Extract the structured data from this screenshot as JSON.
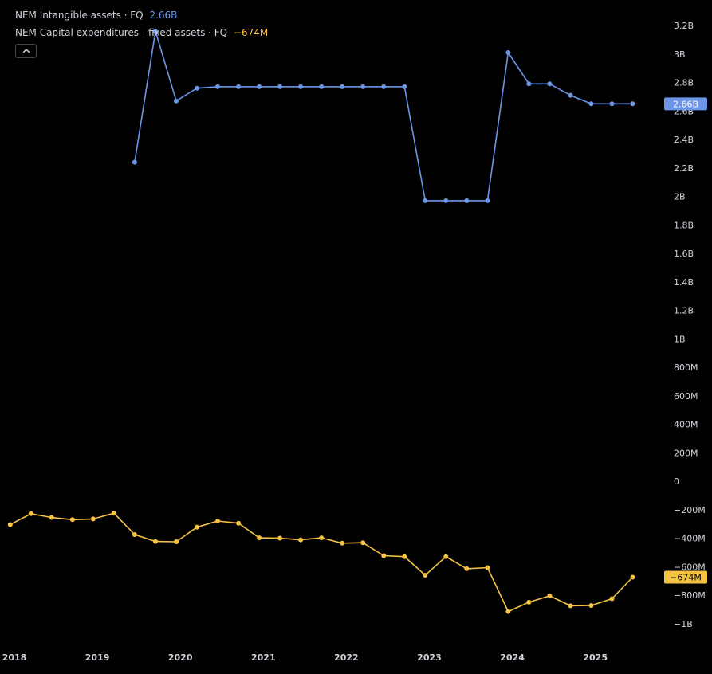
{
  "legend": {
    "series1_label": "NEM Intangible assets · FQ",
    "series1_value": "2.66B",
    "series2_label": "NEM Capital expenditures - fixed assets · FQ",
    "series2_value": "−674M"
  },
  "colors": {
    "background": "#000000",
    "intangible": "#6b96e8",
    "capex": "#f5c242",
    "text": "#d1d4dc"
  },
  "chart_data": {
    "type": "line",
    "title": "",
    "x_tick_labels": [
      "2018",
      "2019",
      "2020",
      "2021",
      "2022",
      "2023",
      "2024",
      "2025"
    ],
    "x_tick_years": [
      2018,
      2019,
      2020,
      2021,
      2022,
      2023,
      2024,
      2025
    ],
    "y_tick_labels": [
      "3.2B",
      "3B",
      "2.8B",
      "2.6B",
      "2.4B",
      "2.2B",
      "2B",
      "1.8B",
      "1.6B",
      "1.4B",
      "1.2B",
      "1B",
      "800M",
      "600M",
      "400M",
      "200M",
      "0",
      "−200M",
      "−400M",
      "−600M",
      "−800M",
      "−1B"
    ],
    "y_tick_values": [
      3200,
      3000,
      2800,
      2600,
      2400,
      2200,
      2000,
      1800,
      1600,
      1400,
      1200,
      1000,
      800,
      600,
      400,
      200,
      0,
      -200,
      -400,
      -600,
      -800,
      -1000
    ],
    "ylim": [
      -1100,
      3300
    ],
    "unit": "millions USD",
    "series": [
      {
        "name": "NEM Intangible assets",
        "color": "#6b96e8",
        "last_value_label": "2.66B",
        "x": [
          2019.45,
          2019.7,
          2019.95,
          2020.2,
          2020.45,
          2020.7,
          2020.95,
          2021.2,
          2021.45,
          2021.7,
          2021.95,
          2022.2,
          2022.45,
          2022.7,
          2022.95,
          2023.2,
          2023.45,
          2023.7,
          2023.95,
          2024.2,
          2024.45,
          2024.7,
          2024.95,
          2025.2,
          2025.45
        ],
        "values": [
          2240,
          3160,
          2670,
          2760,
          2770,
          2770,
          2770,
          2770,
          2770,
          2770,
          2770,
          2770,
          2770,
          2770,
          1970,
          1970,
          1970,
          1970,
          3010,
          2790,
          2790,
          2710,
          2650,
          2650,
          2650
        ]
      },
      {
        "name": "NEM Capital expenditures - fixed assets",
        "color": "#f5c242",
        "last_value_label": "−674M",
        "x": [
          2017.95,
          2018.2,
          2018.45,
          2018.7,
          2018.95,
          2019.2,
          2019.45,
          2019.7,
          2019.95,
          2020.2,
          2020.45,
          2020.7,
          2020.95,
          2021.2,
          2021.45,
          2021.7,
          2021.95,
          2022.2,
          2022.45,
          2022.7,
          2022.95,
          2023.2,
          2023.45,
          2023.7,
          2023.95,
          2024.2,
          2024.45,
          2024.7,
          2024.95,
          2025.2,
          2025.45
        ],
        "values": [
          -305,
          -228,
          -255,
          -270,
          -265,
          -225,
          -375,
          -423,
          -425,
          -323,
          -280,
          -295,
          -398,
          -400,
          -412,
          -398,
          -435,
          -432,
          -523,
          -530,
          -660,
          -530,
          -615,
          -607,
          -915,
          -850,
          -805,
          -875,
          -873,
          -825,
          -674
        ]
      }
    ]
  }
}
